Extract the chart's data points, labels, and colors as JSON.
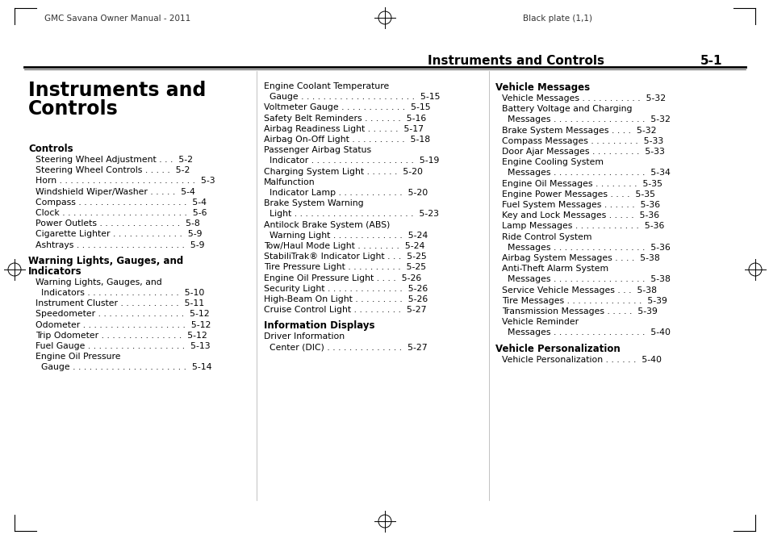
{
  "bg_color": "#ffffff",
  "header_left": "GMC Savana Owner Manual - 2011",
  "header_right": "Black plate (1,1)",
  "page_title": "Instruments and Controls",
  "page_number": "5-1",
  "col1_header": "Controls",
  "col1_items": [
    [
      "Steering Wheel Adjustment . . .  5-2",
      false
    ],
    [
      "Steering Wheel Controls . . . . .  5-2",
      false
    ],
    [
      "Horn . . . . . . . . . . . . . . . . . . . . . . . . .  5-3",
      false
    ],
    [
      "Windshield Wiper/Washer . . . . .  5-4",
      false
    ],
    [
      "Compass . . . . . . . . . . . . . . . . . . . .  5-4",
      false
    ],
    [
      "Clock . . . . . . . . . . . . . . . . . . . . . . .  5-6",
      false
    ],
    [
      "Power Outlets . . . . . . . . . . . . . . .  5-8",
      false
    ],
    [
      "Cigarette Lighter . . . . . . . . . . . . .  5-9",
      false
    ],
    [
      "Ashtrays . . . . . . . . . . . . . . . . . . . .  5-9",
      false
    ]
  ],
  "col1_subheader1": "Warning Lights, Gauges, and",
  "col1_subheader2": "Indicators",
  "col1_subitems": [
    [
      "Warning Lights, Gauges, and",
      false
    ],
    [
      "  Indicators . . . . . . . . . . . . . . . . .  5-10",
      false
    ],
    [
      "Instrument Cluster . . . . . . . . . . .  5-11",
      false
    ],
    [
      "Speedometer . . . . . . . . . . . . . . . .  5-12",
      false
    ],
    [
      "Odometer . . . . . . . . . . . . . . . . . . .  5-12",
      false
    ],
    [
      "Trip Odometer . . . . . . . . . . . . . . .  5-12",
      false
    ],
    [
      "Fuel Gauge . . . . . . . . . . . . . . . . . .  5-13",
      false
    ],
    [
      "Engine Oil Pressure",
      false
    ],
    [
      "  Gauge . . . . . . . . . . . . . . . . . . . . .  5-14",
      false
    ]
  ],
  "col2_items": [
    [
      "Engine Coolant Temperature",
      false
    ],
    [
      "  Gauge . . . . . . . . . . . . . . . . . . . . .  5-15",
      false
    ],
    [
      "Voltmeter Gauge . . . . . . . . . . . .  5-15",
      false
    ],
    [
      "Safety Belt Reminders . . . . . . .  5-16",
      false
    ],
    [
      "Airbag Readiness Light . . . . . .  5-17",
      false
    ],
    [
      "Airbag On-Off Light . . . . . . . . . .  5-18",
      false
    ],
    [
      "Passenger Airbag Status",
      false
    ],
    [
      "  Indicator . . . . . . . . . . . . . . . . . . .  5-19",
      false
    ],
    [
      "Charging System Light . . . . . .  5-20",
      false
    ],
    [
      "Malfunction",
      false
    ],
    [
      "  Indicator Lamp . . . . . . . . . . . .  5-20",
      false
    ],
    [
      "Brake System Warning",
      false
    ],
    [
      "  Light . . . . . . . . . . . . . . . . . . . . . .  5-23",
      false
    ],
    [
      "Antilock Brake System (ABS)",
      false
    ],
    [
      "  Warning Light . . . . . . . . . . . . .  5-24",
      false
    ],
    [
      "Tow/Haul Mode Light . . . . . . . .  5-24",
      false
    ],
    [
      "StabiliTrak® Indicator Light . . .  5-25",
      false
    ],
    [
      "Tire Pressure Light . . . . . . . . . .  5-25",
      false
    ],
    [
      "Engine Oil Pressure Light . . . .  5-26",
      false
    ],
    [
      "Security Light . . . . . . . . . . . . . .  5-26",
      false
    ],
    [
      "High-Beam On Light . . . . . . . . .  5-26",
      false
    ],
    [
      "Cruise Control Light . . . . . . . . .  5-27",
      false
    ]
  ],
  "col2_subheader": "Information Displays",
  "col2_subitems": [
    [
      "Driver Information",
      false
    ],
    [
      "  Center (DIC) . . . . . . . . . . . . . .  5-27",
      false
    ]
  ],
  "col3_header": "Vehicle Messages",
  "col3_items": [
    [
      "Vehicle Messages . . . . . . . . . . .  5-32",
      false
    ],
    [
      "Battery Voltage and Charging",
      false
    ],
    [
      "  Messages . . . . . . . . . . . . . . . . .  5-32",
      false
    ],
    [
      "Brake System Messages . . . .  5-32",
      false
    ],
    [
      "Compass Messages . . . . . . . . .  5-33",
      false
    ],
    [
      "Door Ajar Messages . . . . . . . . .  5-33",
      false
    ],
    [
      "Engine Cooling System",
      false
    ],
    [
      "  Messages . . . . . . . . . . . . . . . . .  5-34",
      false
    ],
    [
      "Engine Oil Messages . . . . . . . .  5-35",
      false
    ],
    [
      "Engine Power Messages . . . .  5-35",
      false
    ],
    [
      "Fuel System Messages . . . . . .  5-36",
      false
    ],
    [
      "Key and Lock Messages . . . . .  5-36",
      false
    ],
    [
      "Lamp Messages . . . . . . . . . . . .  5-36",
      false
    ],
    [
      "Ride Control System",
      false
    ],
    [
      "  Messages . . . . . . . . . . . . . . . . .  5-36",
      false
    ],
    [
      "Airbag System Messages . . . .  5-38",
      false
    ],
    [
      "Anti-Theft Alarm System",
      false
    ],
    [
      "  Messages . . . . . . . . . . . . . . . . .  5-38",
      false
    ],
    [
      "Service Vehicle Messages . . .  5-38",
      false
    ],
    [
      "Tire Messages . . . . . . . . . . . . . .  5-39",
      false
    ],
    [
      "Transmission Messages . . . . .  5-39",
      false
    ],
    [
      "Vehicle Reminder",
      false
    ],
    [
      "  Messages . . . . . . . . . . . . . . . . .  5-40",
      false
    ]
  ],
  "col3_subheader": "Vehicle Personalization",
  "col3_subitems": [
    [
      "Vehicle Personalization . . . . . .  5-40",
      false
    ]
  ]
}
